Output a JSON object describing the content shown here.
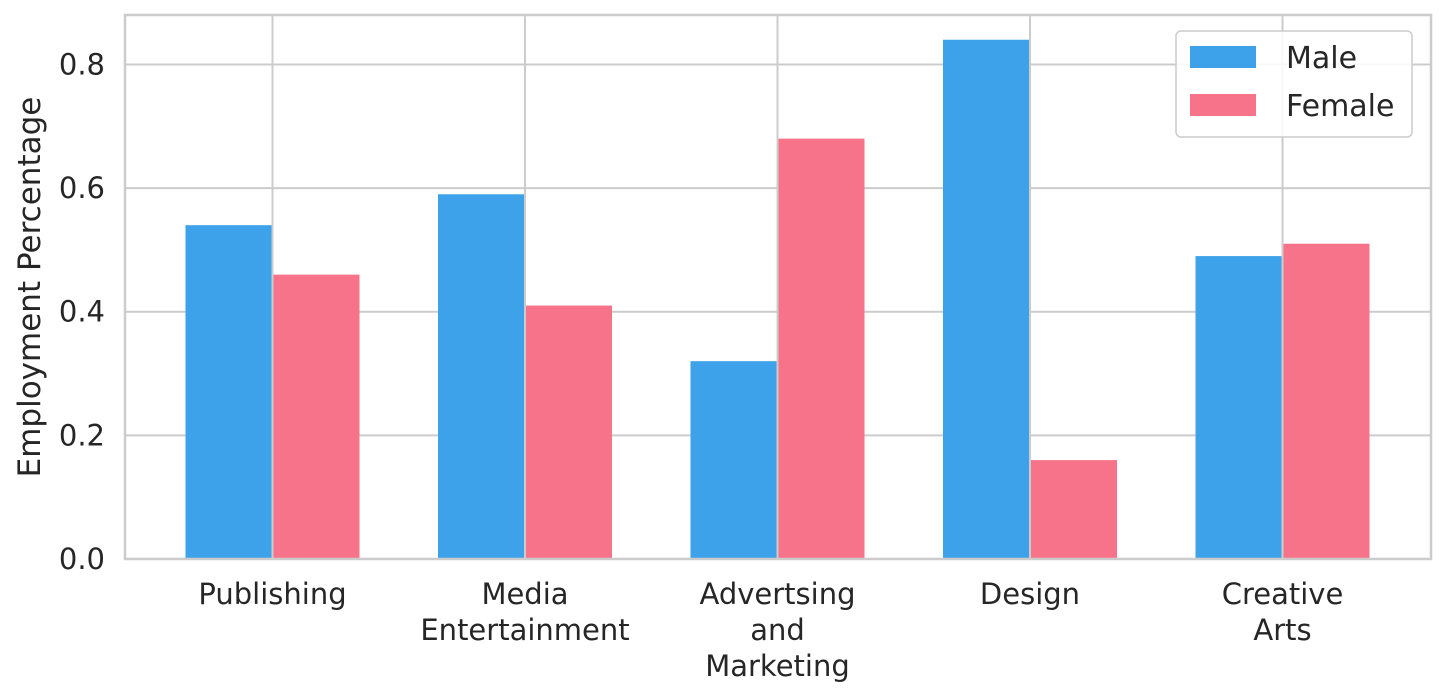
{
  "chart_data": {
    "type": "bar",
    "categories": [
      [
        "Publishing"
      ],
      [
        "Media",
        "Entertainment"
      ],
      [
        "Advertsing",
        "and",
        "Marketing"
      ],
      [
        "Design"
      ],
      [
        "Creative",
        "Arts"
      ]
    ],
    "series": [
      {
        "name": "Male",
        "color": "#3ea2ea",
        "values": [
          0.54,
          0.59,
          0.32,
          0.84,
          0.49
        ]
      },
      {
        "name": "Female",
        "color": "#f77389",
        "values": [
          0.46,
          0.41,
          0.68,
          0.16,
          0.51
        ]
      }
    ],
    "ylabel": "Employment Percentage",
    "xlabel": "",
    "title": "",
    "ylim": [
      0,
      0.88
    ],
    "yticks": [
      "0.0",
      "0.2",
      "0.4",
      "0.6",
      "0.8"
    ],
    "grid": true,
    "legend_position": "top-right"
  }
}
